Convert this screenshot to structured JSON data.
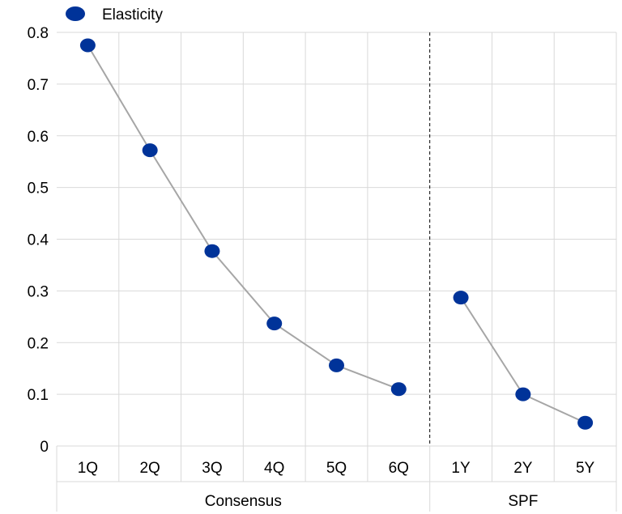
{
  "chart_data": {
    "type": "line",
    "title": "",
    "xlabel": "",
    "ylabel": "",
    "ylim": [
      0,
      0.8
    ],
    "yticks": [
      "0",
      "0.1",
      "0.2",
      "0.3",
      "0.4",
      "0.5",
      "0.6",
      "0.7",
      "0.8"
    ],
    "grid": true,
    "legend": {
      "position": "top-left"
    },
    "groups": [
      {
        "label": "Consensus",
        "categories": [
          "1Q",
          "2Q",
          "3Q",
          "4Q",
          "5Q",
          "6Q"
        ]
      },
      {
        "label": "SPF",
        "categories": [
          "1Y",
          "2Y",
          "5Y"
        ]
      }
    ],
    "series": [
      {
        "name": "Elasticity",
        "segments": [
          {
            "group": "Consensus",
            "values": [
              0.775,
              0.572,
              0.377,
              0.237,
              0.156,
              0.11
            ]
          },
          {
            "group": "SPF",
            "values": [
              0.287,
              0.1,
              0.045
            ]
          }
        ]
      }
    ],
    "colors": {
      "marker": "#003399",
      "line": "#a6a6a6",
      "grid": "#d9d9d9",
      "divider": "#000000"
    }
  }
}
